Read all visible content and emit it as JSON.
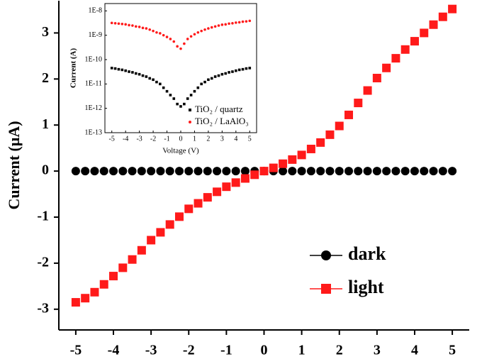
{
  "chart_data": [
    {
      "type": "scatter",
      "ylabel": "Current (μA)",
      "x": [
        -5,
        -4.75,
        -4.5,
        -4.25,
        -4,
        -3.75,
        -3.5,
        -3.25,
        -3,
        -2.75,
        -2.5,
        -2.25,
        -2,
        -1.75,
        -1.5,
        -1.25,
        -1,
        -0.75,
        -0.5,
        -0.25,
        0,
        0.25,
        0.5,
        0.75,
        1,
        1.25,
        1.5,
        1.75,
        2,
        2.25,
        2.5,
        2.75,
        3,
        3.25,
        3.5,
        3.75,
        4,
        4.25,
        4.5,
        4.75,
        5
      ],
      "series": [
        {
          "name": "dark",
          "color": "#000000",
          "marker": "circle",
          "values": [
            0,
            0,
            0,
            0,
            0,
            0,
            0,
            0,
            0,
            0,
            0,
            0,
            0,
            0,
            0,
            0,
            0,
            0,
            0,
            0,
            0,
            0,
            0,
            0,
            0,
            0,
            0,
            0,
            0,
            0,
            0,
            0,
            0,
            0,
            0,
            0,
            0,
            0,
            0,
            0,
            0
          ]
        },
        {
          "name": "light",
          "color": "#ff1a1a",
          "marker": "square",
          "values": [
            -2.85,
            -2.76,
            -2.63,
            -2.46,
            -2.28,
            -2.1,
            -1.92,
            -1.72,
            -1.5,
            -1.33,
            -1.16,
            -0.99,
            -0.82,
            -0.7,
            -0.57,
            -0.45,
            -0.34,
            -0.25,
            -0.16,
            -0.08,
            0,
            0.07,
            0.16,
            0.25,
            0.35,
            0.48,
            0.62,
            0.79,
            0.98,
            1.22,
            1.48,
            1.75,
            2.02,
            2.24,
            2.45,
            2.64,
            2.82,
            3.0,
            3.18,
            3.35,
            3.52
          ]
        }
      ],
      "xlim": [
        -5.45,
        5.45
      ],
      "xticks": [
        -5,
        -4,
        -3,
        -2,
        -1,
        0,
        1,
        2,
        3,
        4,
        5
      ],
      "ylim": [
        -3.45,
        3.7
      ],
      "yticks": [
        -3,
        -2,
        -1,
        0,
        1,
        2,
        3
      ],
      "legend": "lower right"
    },
    {
      "type": "scatter",
      "xlabel": "Voltage (V)",
      "ylabel": "Current (A)",
      "log_y": true,
      "x": [
        -5,
        -4.75,
        -4.5,
        -4.25,
        -4,
        -3.75,
        -3.5,
        -3.25,
        -3,
        -2.75,
        -2.5,
        -2.25,
        -2,
        -1.75,
        -1.5,
        -1.25,
        -1,
        -0.75,
        -0.5,
        -0.25,
        0,
        0.25,
        0.5,
        0.75,
        1,
        1.25,
        1.5,
        1.75,
        2,
        2.25,
        2.5,
        2.75,
        3,
        3.25,
        3.5,
        3.75,
        4,
        4.25,
        4.5,
        4.75,
        5
      ],
      "series": [
        {
          "name": "TiO₂ / quartz",
          "color": "#000000",
          "marker": "square",
          "values": [
            4.5e-11,
            4.3e-11,
            4e-11,
            3.8e-11,
            3.5e-11,
            3.2e-11,
            3e-11,
            2.7e-11,
            2.5e-11,
            2.2e-11,
            2e-11,
            1.7e-11,
            1.5e-11,
            1.2e-11,
            1e-11,
            7e-12,
            5e-12,
            3.5e-12,
            2.5e-12,
            1.5e-12,
            1.2e-12,
            1.5e-12,
            2.5e-12,
            3.5e-12,
            5e-12,
            7e-12,
            1e-11,
            1.2e-11,
            1.5e-11,
            1.7e-11,
            2e-11,
            2.2e-11,
            2.5e-11,
            2.7e-11,
            3e-11,
            3.2e-11,
            3.5e-11,
            3.8e-11,
            4e-11,
            4.3e-11,
            4.5e-11
          ]
        },
        {
          "name": "TiO₂ / LaAlO₃",
          "color": "#ff1a1a",
          "marker": "circle",
          "values": [
            3.2e-09,
            3.1e-09,
            3e-09,
            2.9e-09,
            2.8e-09,
            2.6e-09,
            2.5e-09,
            2.3e-09,
            2.2e-09,
            2e-09,
            1.9e-09,
            1.7e-09,
            1.5e-09,
            1.3e-09,
            1.2e-09,
            1e-09,
            8.5e-10,
            7e-10,
            5.5e-10,
            3.5e-10,
            2.8e-10,
            4.5e-10,
            7e-10,
            9e-10,
            1.1e-09,
            1.3e-09,
            1.5e-09,
            1.7e-09,
            1.9e-09,
            2.1e-09,
            2.3e-09,
            2.5e-09,
            2.7e-09,
            2.8e-09,
            3e-09,
            3.1e-09,
            3.3e-09,
            3.4e-09,
            3.6e-09,
            3.7e-09,
            3.9e-09
          ]
        }
      ],
      "xlim": [
        -5.5,
        5.5
      ],
      "xticks": [
        -5,
        -4,
        -3,
        -2,
        -1,
        0,
        1,
        2,
        3,
        4,
        5
      ],
      "ylim": [
        1e-13,
        2e-08
      ],
      "yticks": [
        {
          "value": 1e-13,
          "label": "1E-13"
        },
        {
          "value": 1e-12,
          "label": "1E-12"
        },
        {
          "value": 1e-11,
          "label": "1E-11"
        },
        {
          "value": 1e-10,
          "label": "1E-10"
        },
        {
          "value": 1e-09,
          "label": "1E-9"
        },
        {
          "value": 1e-08,
          "label": "1E-8"
        }
      ],
      "legend": "lower right"
    }
  ]
}
